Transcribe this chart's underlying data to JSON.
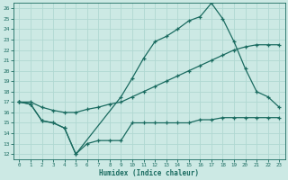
{
  "xlabel": "Humidex (Indice chaleur)",
  "xlim": [
    -0.5,
    23.5
  ],
  "ylim": [
    11.5,
    26.5
  ],
  "xticks": [
    0,
    1,
    2,
    3,
    4,
    5,
    6,
    7,
    8,
    9,
    10,
    11,
    12,
    13,
    14,
    15,
    16,
    17,
    18,
    19,
    20,
    21,
    22,
    23
  ],
  "yticks": [
    12,
    13,
    14,
    15,
    16,
    17,
    18,
    19,
    20,
    21,
    22,
    23,
    24,
    25,
    26
  ],
  "bg_color": "#cce9e4",
  "grid_color": "#b0d8d2",
  "line_color": "#1a6b60",
  "line1_x": [
    0,
    1,
    2,
    3,
    4,
    5,
    6,
    7,
    8,
    9,
    10,
    11,
    12,
    13,
    14,
    15,
    16,
    17,
    18,
    19,
    20,
    21,
    22,
    23
  ],
  "line1_y": [
    17.0,
    16.8,
    15.2,
    15.0,
    14.5,
    12.0,
    13.0,
    13.3,
    13.3,
    13.3,
    15.0,
    15.0,
    15.0,
    15.0,
    15.0,
    15.0,
    15.3,
    15.3,
    15.5,
    15.5,
    15.5,
    15.5,
    15.5,
    15.5
  ],
  "line2_x": [
    0,
    1,
    2,
    3,
    4,
    5,
    6,
    7,
    8,
    9,
    10,
    11,
    12,
    13,
    14,
    15,
    16,
    17,
    18,
    19,
    20,
    21,
    22,
    23
  ],
  "line2_y": [
    17.0,
    17.0,
    16.5,
    16.2,
    16.0,
    16.0,
    16.3,
    16.5,
    16.8,
    17.0,
    17.5,
    18.0,
    18.5,
    19.0,
    19.5,
    20.0,
    20.5,
    21.0,
    21.5,
    22.0,
    22.3,
    22.5,
    22.5,
    22.5
  ],
  "line3_x": [
    0,
    1,
    2,
    3,
    4,
    5,
    9,
    10,
    11,
    12,
    13,
    14,
    15,
    16,
    17,
    18,
    19,
    20,
    21,
    22,
    23
  ],
  "line3_y": [
    17.0,
    16.8,
    15.2,
    15.0,
    14.5,
    12.0,
    17.5,
    19.3,
    21.2,
    22.8,
    23.3,
    24.0,
    24.8,
    25.2,
    26.5,
    25.0,
    22.8,
    20.2,
    18.0,
    17.5,
    16.5
  ]
}
